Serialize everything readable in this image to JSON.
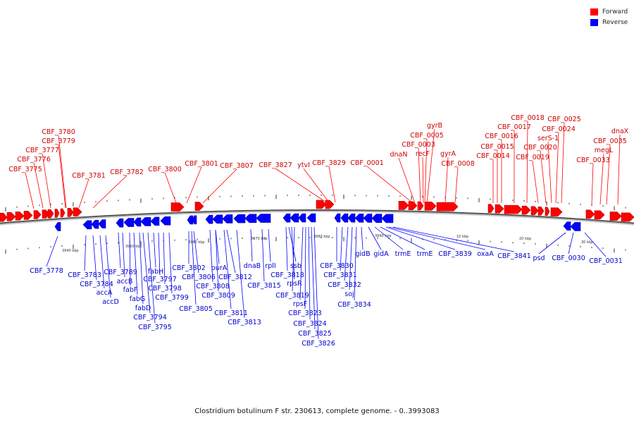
{
  "legend": [
    {
      "label": "Forward",
      "color": "#ff0000"
    },
    {
      "label": "Reverse",
      "color": "#0000ff"
    }
  ],
  "caption": "Clostridium botulinum F str. 230613, complete genome. - 0..3993083",
  "scale_labels": [
    "3940 kbp",
    "3950 kbp",
    "3960 kbp",
    "3970 kbp",
    "3980 kbp",
    "3990 kbp",
    "10 kbp",
    "20 kbp",
    "30 kbp"
  ],
  "forward_labels": [
    "CBF_3780",
    "CBF_3779",
    "CBF_3777",
    "CBF_3776",
    "CBF_3775",
    "CBF_3781",
    "CBF_3782",
    "CBF_3800",
    "CBF_3801",
    "CBF_3807",
    "CBF_3827",
    "ytvI",
    "CBF_3829",
    "CBF_0001",
    "dnaN",
    "gyrB",
    "CBF_0005",
    "CBF_0003",
    "recF",
    "gyrA",
    "CBF_0008",
    "CBF_0018",
    "CBF_0017",
    "CBF_0016",
    "CBF_0015",
    "CBF_0014",
    "CBF_0025",
    "CBF_0024",
    "serS-1",
    "CBF_0020",
    "CBF_0019",
    "dnaX",
    "CBF_0035",
    "megL",
    "CBF_0033"
  ],
  "reverse_labels": [
    "CBF_3778",
    "CBF_3783",
    "CBF_3784",
    "accA",
    "accD",
    "CBF_3789",
    "accB",
    "fabF",
    "fabG",
    "fabD",
    "CBF_3794",
    "CBF_3795",
    "fabH",
    "CBF_3797",
    "CBF_3798",
    "CBF_3799",
    "CBF_3802",
    "CBF_3806",
    "CBF_3805",
    "purA",
    "CBF_3808",
    "CBF_3809",
    "CBF_3812",
    "CBF_3811",
    "CBF_3813",
    "dnaB",
    "rplI",
    "CBF_3815",
    "ssb",
    "CBF_3818",
    "rpsR",
    "CBF_3819",
    "rpsF",
    "CBF_3823",
    "CBF_3824",
    "CBF_3825",
    "CBF_3826",
    "CBF_3830",
    "CBF_3831",
    "CBF_3832",
    "soj",
    "CBF_3834",
    "gidB",
    "gidA",
    "trmE",
    "trmE",
    "CBF_3839",
    "oxaA",
    "CBF_3841",
    "psd",
    "CBF_0030",
    "CBF_0031"
  ]
}
